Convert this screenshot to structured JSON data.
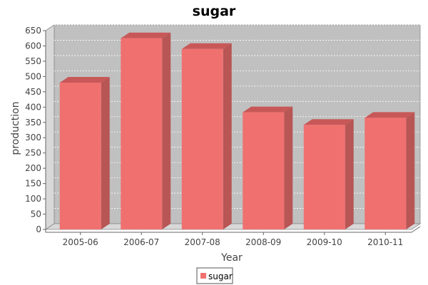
{
  "chart_data": {
    "type": "bar",
    "title": "sugar",
    "xlabel": "Year",
    "ylabel": "production",
    "categories": [
      "2005-06",
      "2006-07",
      "2007-08",
      "2008-09",
      "2009-10",
      "2010-11"
    ],
    "series": [
      {
        "name": "sugar",
        "values": [
          480,
          625,
          590,
          383,
          342,
          365
        ]
      }
    ],
    "ylim": [
      0,
      650
    ],
    "yticks": [
      0,
      50,
      100,
      150,
      200,
      250,
      300,
      350,
      400,
      450,
      500,
      550,
      600,
      650
    ],
    "grid": true,
    "style3d": true,
    "legend_position": "bottom",
    "colors": {
      "bar_front": "#f07070",
      "bar_top": "#c85858",
      "bar_side": "#b85555",
      "plot_bg": "#c0c0c0",
      "plot_wall": "#d8d8d8",
      "gridline": "#ffffff"
    }
  }
}
